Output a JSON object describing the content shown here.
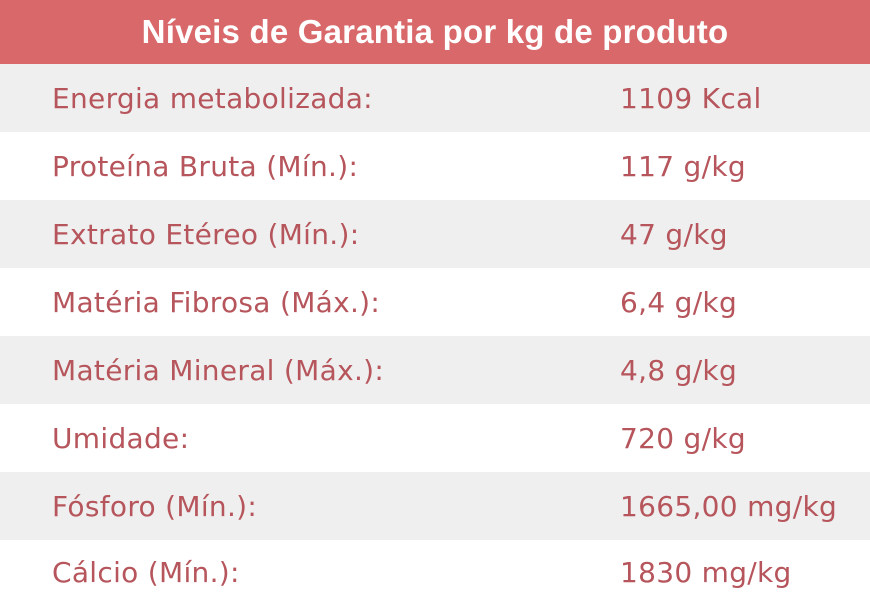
{
  "header": {
    "title": "Níveis de Garantia por kg de produto"
  },
  "rows": [
    {
      "label": "Energia metabolizada:",
      "value": "1109 Kcal"
    },
    {
      "label": "Proteína Bruta (Mín.):",
      "value": "117 g/kg"
    },
    {
      "label": "Extrato Etéreo (Mín.):",
      "value": "47 g/kg"
    },
    {
      "label": "Matéria Fibrosa (Máx.):",
      "value": "6,4 g/kg"
    },
    {
      "label": "Matéria Mineral (Máx.):",
      "value": "4,8 g/kg"
    },
    {
      "label": "Umidade:",
      "value": "720 g/kg"
    },
    {
      "label": "Fósforo (Mín.):",
      "value": "1665,00 mg/kg"
    },
    {
      "label": "Cálcio (Mín.):",
      "value": "1830 mg/kg"
    }
  ],
  "colors": {
    "header_bg": "#d9686a",
    "header_text": "#ffffff",
    "row_text": "#b6555b",
    "row_shade": "#efefef"
  }
}
